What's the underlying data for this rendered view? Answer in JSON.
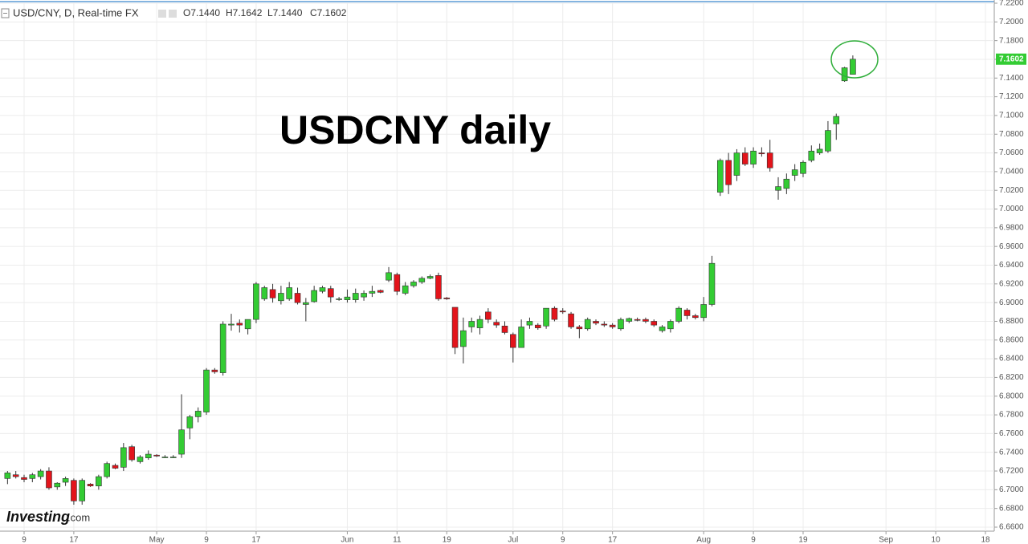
{
  "chart_data": {
    "type": "candlestick",
    "title": "USD/CNY, D, Real-time FX",
    "header_values": [
      "O7.1440",
      "H7.1642",
      "L7.1440",
      "C7.1602"
    ],
    "annotation": "USDCNY daily",
    "logo_brand": "Investing",
    "logo_domain": ".com",
    "up_color": "#33cc33",
    "down_color": "#e3141b",
    "grid": true,
    "ylim": [
      6.66,
      7.22
    ],
    "yticks": [
      {
        "value": 6.66,
        "label": "6.6600"
      },
      {
        "value": 6.68,
        "label": "6.6800"
      },
      {
        "value": 6.7,
        "label": "6.7000"
      },
      {
        "value": 6.72,
        "label": "6.7200"
      },
      {
        "value": 6.74,
        "label": "6.7400"
      },
      {
        "value": 6.76,
        "label": "6.7600"
      },
      {
        "value": 6.78,
        "label": "6.7800"
      },
      {
        "value": 6.8,
        "label": "6.8000"
      },
      {
        "value": 6.82,
        "label": "6.8200"
      },
      {
        "value": 6.84,
        "label": "6.8400"
      },
      {
        "value": 6.86,
        "label": "6.8600"
      },
      {
        "value": 6.88,
        "label": "6.8800"
      },
      {
        "value": 6.9,
        "label": "6.9000"
      },
      {
        "value": 6.92,
        "label": "6.9200"
      },
      {
        "value": 6.94,
        "label": "6.9400"
      },
      {
        "value": 6.96,
        "label": "6.9600"
      },
      {
        "value": 6.98,
        "label": "6.9800"
      },
      {
        "value": 7.0,
        "label": "7.0000"
      },
      {
        "value": 7.02,
        "label": "7.0200"
      },
      {
        "value": 7.04,
        "label": "7.0400"
      },
      {
        "value": 7.06,
        "label": "7.0600"
      },
      {
        "value": 7.08,
        "label": "7.0800"
      },
      {
        "value": 7.1,
        "label": "7.1000"
      },
      {
        "value": 7.12,
        "label": "7.1200"
      },
      {
        "value": 7.14,
        "label": "7.1400"
      },
      {
        "value": 7.16,
        "label": "7.1600"
      },
      {
        "value": 7.18,
        "label": "7.1800"
      },
      {
        "value": 7.2,
        "label": "7.2000"
      },
      {
        "value": 7.22,
        "label": "7.2200"
      }
    ],
    "categories": [
      null,
      null,
      "9",
      null,
      null,
      null,
      null,
      null,
      "17",
      null,
      null,
      null,
      null,
      null,
      null,
      null,
      null,
      null,
      "May",
      null,
      null,
      null,
      null,
      null,
      "9",
      null,
      null,
      null,
      null,
      null,
      "17",
      null,
      null,
      null,
      null,
      null,
      null,
      null,
      null,
      null,
      null,
      "Jun",
      null,
      null,
      null,
      null,
      null,
      "11",
      null,
      null,
      null,
      null,
      null,
      "19",
      null,
      null,
      null,
      null,
      null,
      null,
      null,
      "Jul",
      null,
      null,
      null,
      null,
      null,
      "9",
      null,
      null,
      null,
      null,
      null,
      "17",
      null,
      null,
      null,
      null,
      null,
      null,
      null,
      null,
      null,
      null,
      "Aug",
      null,
      null,
      null,
      null,
      null,
      "9",
      null,
      null,
      null,
      null,
      null,
      "19",
      null,
      null,
      null,
      null,
      null,
      null,
      null,
      null,
      null,
      "Sep",
      null,
      null,
      null,
      null,
      null,
      "10",
      null,
      null,
      null,
      null,
      null,
      "18"
    ],
    "open": [
      6.712,
      6.716,
      6.713,
      6.712,
      6.714,
      6.72,
      6.703,
      6.708,
      6.71,
      6.688,
      6.706,
      6.704,
      6.714,
      6.726,
      6.724,
      6.746,
      6.73,
      6.734,
      6.737,
      6.735,
      6.735,
      6.738,
      6.766,
      6.778,
      6.783,
      6.828,
      6.825,
      6.876,
      6.878,
      6.872,
      6.882,
      6.904,
      6.914,
      6.902,
      6.904,
      6.91,
      6.898,
      6.901,
      6.912,
      6.915,
      6.904,
      6.903,
      6.903,
      6.906,
      6.91,
      6.913,
      6.924,
      6.93,
      6.91,
      6.918,
      6.922,
      6.926,
      6.929,
      6.905,
      6.895,
      6.853,
      6.874,
      6.873,
      6.89,
      6.879,
      6.875,
      6.866,
      6.852,
      6.876,
      6.876,
      6.875,
      6.894,
      6.891,
      6.888,
      6.874,
      6.872,
      6.88,
      6.877,
      6.876,
      6.872,
      6.88,
      6.882,
      6.882,
      6.88,
      6.87,
      6.872,
      6.88,
      6.892,
      6.886,
      6.884,
      6.898,
      7.018,
      7.052,
      7.036,
      7.06,
      7.048,
      7.06,
      7.06,
      7.02,
      7.022,
      7.036,
      7.038,
      7.052,
      7.06,
      7.062,
      7.091,
      7.137,
      7.144,
      null,
      null,
      null,
      null,
      null,
      null,
      null,
      null,
      null,
      null,
      null,
      null,
      null,
      null,
      null,
      null
    ],
    "high": [
      6.72,
      6.72,
      6.716,
      6.718,
      6.722,
      6.724,
      6.708,
      6.714,
      6.712,
      6.712,
      6.707,
      6.716,
      6.73,
      6.728,
      6.75,
      6.748,
      6.737,
      6.742,
      6.738,
      6.737,
      6.737,
      6.802,
      6.78,
      6.788,
      6.83,
      6.83,
      6.88,
      6.888,
      6.882,
      6.882,
      6.922,
      6.918,
      6.92,
      6.918,
      6.922,
      6.916,
      6.905,
      6.918,
      6.918,
      6.918,
      6.906,
      6.914,
      6.915,
      6.913,
      6.918,
      6.914,
      6.938,
      6.932,
      6.922,
      6.924,
      6.928,
      6.93,
      6.932,
      6.906,
      6.895,
      6.884,
      6.884,
      6.886,
      6.894,
      6.882,
      6.88,
      6.868,
      6.882,
      6.884,
      6.878,
      6.894,
      6.896,
      6.894,
      6.89,
      6.876,
      6.884,
      6.882,
      6.88,
      6.878,
      6.884,
      6.884,
      6.884,
      6.884,
      6.882,
      6.876,
      6.882,
      6.896,
      6.894,
      6.888,
      6.906,
      6.95,
      7.054,
      7.06,
      7.064,
      7.066,
      7.066,
      7.066,
      7.074,
      7.034,
      7.038,
      7.048,
      7.052,
      7.068,
      7.07,
      7.094,
      7.102,
      7.152,
      7.1642,
      null,
      null,
      null,
      null,
      null,
      null,
      null,
      null,
      null,
      null,
      null,
      null,
      null,
      null,
      null,
      null
    ],
    "low": [
      6.706,
      6.712,
      6.708,
      6.708,
      6.711,
      6.7,
      6.7,
      6.704,
      6.684,
      6.684,
      6.703,
      6.7,
      6.712,
      6.722,
      6.72,
      6.73,
      6.728,
      6.732,
      6.735,
      6.734,
      6.734,
      6.734,
      6.754,
      6.772,
      6.78,
      6.824,
      6.822,
      6.87,
      6.868,
      6.866,
      6.878,
      6.902,
      6.9,
      6.898,
      6.902,
      6.898,
      6.88,
      6.9,
      6.91,
      6.9,
      6.902,
      6.9,
      6.9,
      6.902,
      6.906,
      6.91,
      6.922,
      6.908,
      6.908,
      6.916,
      6.92,
      6.925,
      6.902,
      6.903,
      6.845,
      6.835,
      6.868,
      6.866,
      6.878,
      6.873,
      6.866,
      6.836,
      6.852,
      6.872,
      6.871,
      6.872,
      6.88,
      6.888,
      6.872,
      6.862,
      6.87,
      6.876,
      6.874,
      6.872,
      6.87,
      6.878,
      6.88,
      6.878,
      6.874,
      6.868,
      6.868,
      6.878,
      6.882,
      6.882,
      6.88,
      6.896,
      7.014,
      7.016,
      7.03,
      7.046,
      7.044,
      7.056,
      7.04,
      7.01,
      7.016,
      7.03,
      7.034,
      7.05,
      7.058,
      7.06,
      7.074,
      7.136,
      7.144,
      null,
      null,
      null,
      null,
      null,
      null,
      null,
      null,
      null,
      null,
      null,
      null,
      null,
      null,
      null,
      null
    ],
    "close": [
      6.718,
      6.714,
      6.711,
      6.716,
      6.72,
      6.702,
      6.707,
      6.712,
      6.688,
      6.71,
      6.704,
      6.714,
      6.728,
      6.723,
      6.745,
      6.732,
      6.735,
      6.738,
      6.736,
      6.735,
      6.735,
      6.764,
      6.778,
      6.784,
      6.828,
      6.826,
      6.877,
      6.877,
      6.876,
      6.882,
      6.92,
      6.916,
      6.905,
      6.91,
      6.916,
      6.9,
      6.9,
      6.913,
      6.916,
      6.906,
      6.904,
      6.906,
      6.91,
      6.91,
      6.912,
      6.911,
      6.932,
      6.912,
      6.918,
      6.922,
      6.926,
      6.928,
      6.904,
      6.904,
      6.852,
      6.87,
      6.88,
      6.882,
      6.882,
      6.876,
      6.868,
      6.852,
      6.874,
      6.88,
      6.873,
      6.894,
      6.882,
      6.89,
      6.874,
      6.872,
      6.882,
      6.878,
      6.876,
      6.874,
      6.882,
      6.883,
      6.881,
      6.88,
      6.876,
      6.874,
      6.88,
      6.894,
      6.886,
      6.884,
      6.898,
      6.942,
      7.052,
      7.026,
      7.06,
      7.048,
      7.062,
      7.059,
      7.044,
      7.024,
      7.032,
      7.042,
      7.05,
      7.062,
      7.064,
      7.084,
      7.099,
      7.151,
      7.1602,
      null,
      null,
      null,
      null,
      null,
      null,
      null,
      null,
      null,
      null,
      null,
      null,
      null,
      null,
      null,
      null
    ]
  }
}
